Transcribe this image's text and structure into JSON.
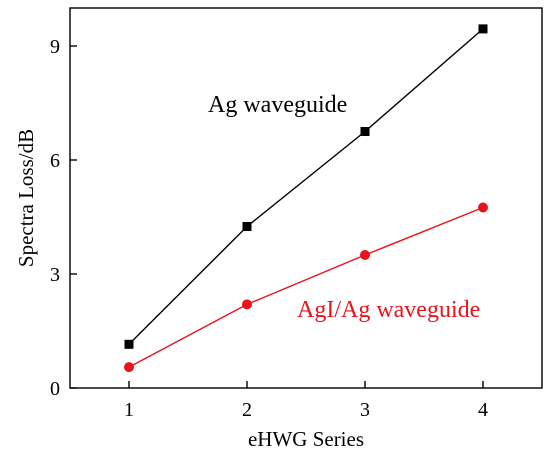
{
  "chart_data": {
    "type": "line",
    "xlabel": "eHWG Series",
    "ylabel": "Spectra Loss/dB",
    "x": [
      1,
      2,
      3,
      4
    ],
    "xticks": [
      "1",
      "2",
      "3",
      "4"
    ],
    "yticks": [
      "0",
      "3",
      "6",
      "9"
    ],
    "xlim": [
      0.5,
      4.5
    ],
    "ylim": [
      0,
      10
    ],
    "grid": false,
    "legend": "none",
    "series": [
      {
        "name": "Ag waveguide",
        "values": [
          1.15,
          4.25,
          6.75,
          9.45
        ],
        "color": "#000000",
        "marker": "square"
      },
      {
        "name": "AgI/Ag waveguide",
        "values": [
          0.55,
          2.2,
          3.5,
          4.75
        ],
        "color": "#e8141b",
        "marker": "circle"
      }
    ]
  }
}
